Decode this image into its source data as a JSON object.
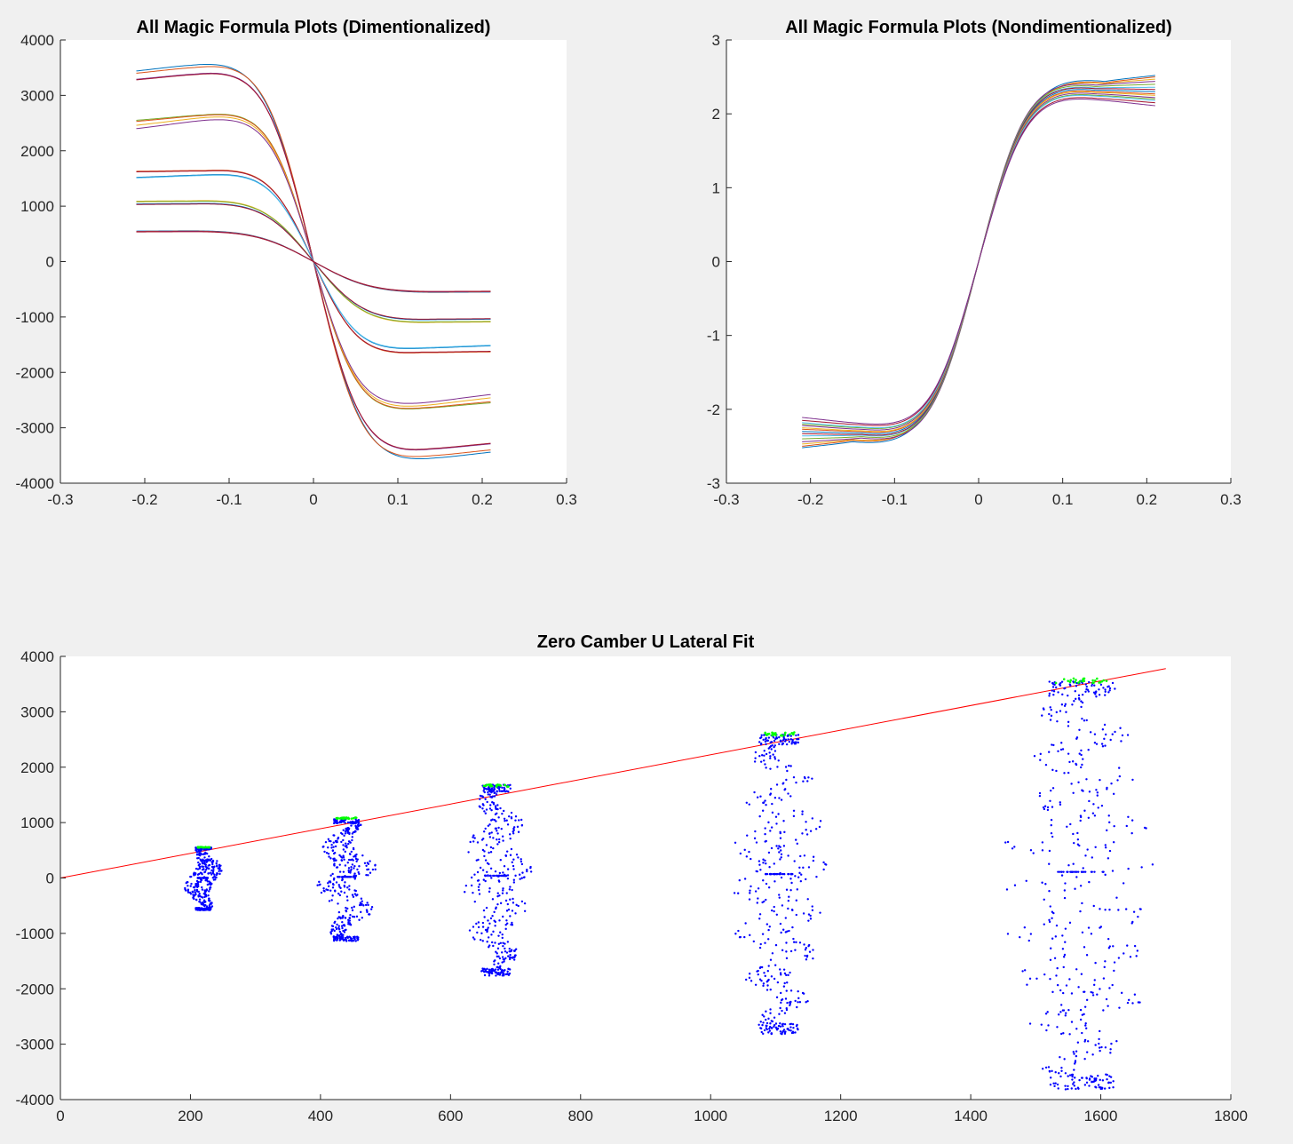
{
  "chart_data": [
    {
      "type": "line",
      "title": "All Magic Formula Plots (Dimentionalized)",
      "xlabel": "",
      "ylabel": "",
      "xlim": [
        -0.3,
        0.3
      ],
      "ylim": [
        -4000,
        4000
      ],
      "xticks": [
        "-0.3",
        "-0.2",
        "-0.1",
        "0",
        "0.1",
        "0.2",
        "0.3"
      ],
      "yticks": [
        "-4000",
        "-3000",
        "-2000",
        "-1000",
        "0",
        "1000",
        "2000",
        "3000",
        "4000"
      ],
      "grid": false,
      "x_range": [
        -0.21,
        0.21
      ],
      "series": [
        {
          "color": "#0072bd",
          "peak": 3560,
          "peak_x": 0.145,
          "end": 3440
        },
        {
          "color": "#d95319",
          "peak": 3520,
          "peak_x": 0.14,
          "end": 3400
        },
        {
          "color": "#7e2f8e",
          "peak": 3400,
          "peak_x": 0.14,
          "end": 3290
        },
        {
          "color": "#a2142f",
          "peak": 3390,
          "peak_x": 0.14,
          "end": 3280
        },
        {
          "color": "#77ac30",
          "peak": 2660,
          "peak_x": 0.13,
          "end": 2550
        },
        {
          "color": "#d95319",
          "peak": 2650,
          "peak_x": 0.13,
          "end": 2530
        },
        {
          "color": "#edb120",
          "peak": 2610,
          "peak_x": 0.13,
          "end": 2460
        },
        {
          "color": "#7e2f8e",
          "peak": 2560,
          "peak_x": 0.13,
          "end": 2400
        },
        {
          "color": "#d95319",
          "peak": 1650,
          "peak_x": 0.13,
          "end": 1630
        },
        {
          "color": "#a2142f",
          "peak": 1640,
          "peak_x": 0.13,
          "end": 1620
        },
        {
          "color": "#0072bd",
          "peak": 1570,
          "peak_x": 0.13,
          "end": 1520
        },
        {
          "color": "#4dbeee",
          "peak": 1560,
          "peak_x": 0.13,
          "end": 1510
        },
        {
          "color": "#edb120",
          "peak": 1100,
          "peak_x": 0.15,
          "end": 1090
        },
        {
          "color": "#77ac30",
          "peak": 1090,
          "peak_x": 0.15,
          "end": 1080
        },
        {
          "color": "#0072bd",
          "peak": 1050,
          "peak_x": 0.15,
          "end": 1040
        },
        {
          "color": "#a2142f",
          "peak": 1040,
          "peak_x": 0.15,
          "end": 1030
        },
        {
          "color": "#0072bd",
          "peak": 555,
          "peak_x": 0.17,
          "end": 550
        },
        {
          "color": "#d95319",
          "peak": 550,
          "peak_x": 0.17,
          "end": 545
        },
        {
          "color": "#7e2f8e",
          "peak": 545,
          "peak_x": 0.17,
          "end": 540
        },
        {
          "color": "#a2142f",
          "peak": 540,
          "peak_x": 0.17,
          "end": 535
        }
      ]
    },
    {
      "type": "line",
      "title": "All Magic Formula Plots (Nondimentionalized)",
      "xlabel": "",
      "ylabel": "",
      "xlim": [
        -0.3,
        0.3
      ],
      "ylim": [
        -3,
        3
      ],
      "xticks": [
        "-0.3",
        "-0.2",
        "-0.1",
        "0",
        "0.1",
        "0.2",
        "0.3"
      ],
      "yticks": [
        "-3",
        "-2",
        "-1",
        "0",
        "1",
        "2",
        "3"
      ],
      "grid": false,
      "x_range": [
        -0.21,
        0.21
      ],
      "series": [
        {
          "color": "#0072bd",
          "peak": 2.45,
          "peak_x": 0.15,
          "end": 2.52
        },
        {
          "color": "#d95319",
          "peak": 2.43,
          "peak_x": 0.15,
          "end": 2.5
        },
        {
          "color": "#edb120",
          "peak": 2.42,
          "peak_x": 0.15,
          "end": 2.47
        },
        {
          "color": "#7e2f8e",
          "peak": 2.4,
          "peak_x": 0.14,
          "end": 2.44
        },
        {
          "color": "#77ac30",
          "peak": 2.38,
          "peak_x": 0.14,
          "end": 2.4
        },
        {
          "color": "#4dbeee",
          "peak": 2.36,
          "peak_x": 0.14,
          "end": 2.36
        },
        {
          "color": "#a2142f",
          "peak": 2.35,
          "peak_x": 0.14,
          "end": 2.33
        },
        {
          "color": "#0072bd",
          "peak": 2.33,
          "peak_x": 0.14,
          "end": 2.3
        },
        {
          "color": "#d95319",
          "peak": 2.31,
          "peak_x": 0.14,
          "end": 2.27
        },
        {
          "color": "#edb120",
          "peak": 2.3,
          "peak_x": 0.14,
          "end": 2.25
        },
        {
          "color": "#7e2f8e",
          "peak": 2.28,
          "peak_x": 0.14,
          "end": 2.22
        },
        {
          "color": "#77ac30",
          "peak": 2.26,
          "peak_x": 0.14,
          "end": 2.2
        },
        {
          "color": "#4dbeee",
          "peak": 2.25,
          "peak_x": 0.14,
          "end": 2.18
        },
        {
          "color": "#a2142f",
          "peak": 2.22,
          "peak_x": 0.14,
          "end": 2.15
        },
        {
          "color": "#7e2f8e",
          "peak": 2.2,
          "peak_x": 0.14,
          "end": 2.11
        }
      ]
    },
    {
      "type": "scatter",
      "title": "Zero Camber U Lateral Fit",
      "xlabel": "",
      "ylabel": "",
      "xlim": [
        0,
        1800
      ],
      "ylim": [
        -4000,
        4000
      ],
      "xticks": [
        "0",
        "200",
        "400",
        "600",
        "800",
        "1000",
        "1200",
        "1400",
        "1600",
        "1800"
      ],
      "yticks": [
        "-4000",
        "-3000",
        "-2000",
        "-1000",
        "0",
        "1000",
        "2000",
        "3000",
        "4000"
      ],
      "grid": false,
      "fit_line": {
        "color": "#ff0000",
        "x": [
          0,
          1700
        ],
        "y": [
          0,
          3780
        ]
      },
      "peak_color": "#00ff00",
      "point_color": "#0000ff",
      "clusters": [
        {
          "x": 220,
          "fz": 555,
          "top": 530,
          "bottom": -560,
          "wave_amp": 22,
          "zero_y": 0,
          "n": 260
        },
        {
          "x": 440,
          "fz": 1080,
          "top": 1020,
          "bottom": -1100,
          "wave_amp": 35,
          "zero_y": 20,
          "n": 320
        },
        {
          "x": 670,
          "fz": 1665,
          "top": 1620,
          "bottom": -1700,
          "wave_amp": 42,
          "zero_y": 40,
          "n": 330
        },
        {
          "x": 1105,
          "fz": 2600,
          "top": 2500,
          "bottom": -2720,
          "wave_amp": 55,
          "zero_y": 70,
          "n": 340
        },
        {
          "x": 1570,
          "fz": 3560,
          "top": 3420,
          "bottom": -3680,
          "wave_amp": 90,
          "zero_y": 110,
          "n": 380
        }
      ]
    }
  ]
}
